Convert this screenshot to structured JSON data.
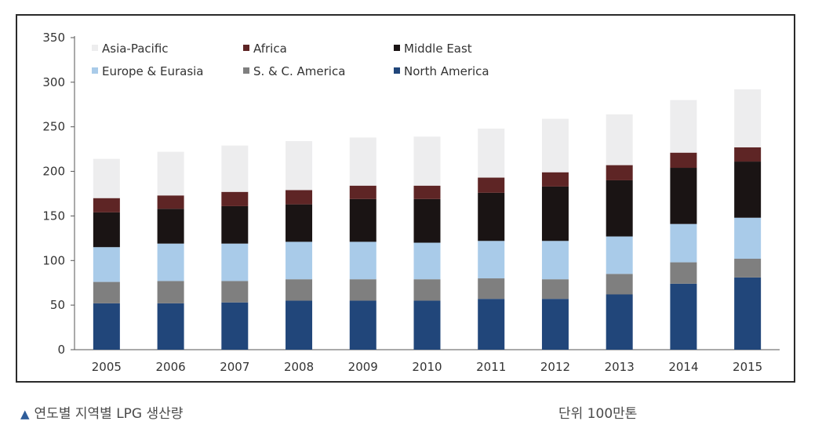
{
  "chart_data": {
    "type": "bar",
    "stacked": true,
    "categories": [
      "2005",
      "2006",
      "2007",
      "2008",
      "2009",
      "2010",
      "2011",
      "2012",
      "2013",
      "2014",
      "2015"
    ],
    "ylim": [
      0,
      350
    ],
    "yticks": [
      0,
      50,
      100,
      150,
      200,
      250,
      300,
      350
    ],
    "grid": false,
    "legend_position": "top-left",
    "series": [
      {
        "name": "North America",
        "color": "#21467a",
        "values": [
          52,
          52,
          53,
          55,
          55,
          55,
          57,
          57,
          62,
          74,
          81
        ]
      },
      {
        "name": "S. & C. America",
        "color": "#7f7f7f",
        "values": [
          24,
          25,
          24,
          24,
          24,
          24,
          23,
          22,
          23,
          24,
          21
        ]
      },
      {
        "name": "Europe & Eurasia",
        "color": "#a9cbe9",
        "values": [
          39,
          42,
          42,
          42,
          42,
          41,
          42,
          43,
          42,
          43,
          46
        ]
      },
      {
        "name": "Middle East",
        "color": "#1a1414",
        "values": [
          39,
          39,
          42,
          42,
          48,
          49,
          54,
          61,
          63,
          63,
          63
        ]
      },
      {
        "name": "Africa",
        "color": "#5e2525",
        "values": [
          16,
          15,
          16,
          16,
          15,
          15,
          17,
          16,
          17,
          17,
          16
        ]
      },
      {
        "name": "Asia-Pacific",
        "color": "#ededee",
        "values": [
          44,
          49,
          52,
          55,
          54,
          55,
          55,
          60,
          57,
          59,
          65
        ]
      }
    ]
  },
  "legend_order": [
    "Asia-Pacific",
    "Africa",
    "Middle East",
    "Europe & Eurasia",
    "S. & C. America",
    "North America"
  ],
  "caption": "연도별 지역별 LPG 생산량",
  "unit": "단위 100만톤"
}
